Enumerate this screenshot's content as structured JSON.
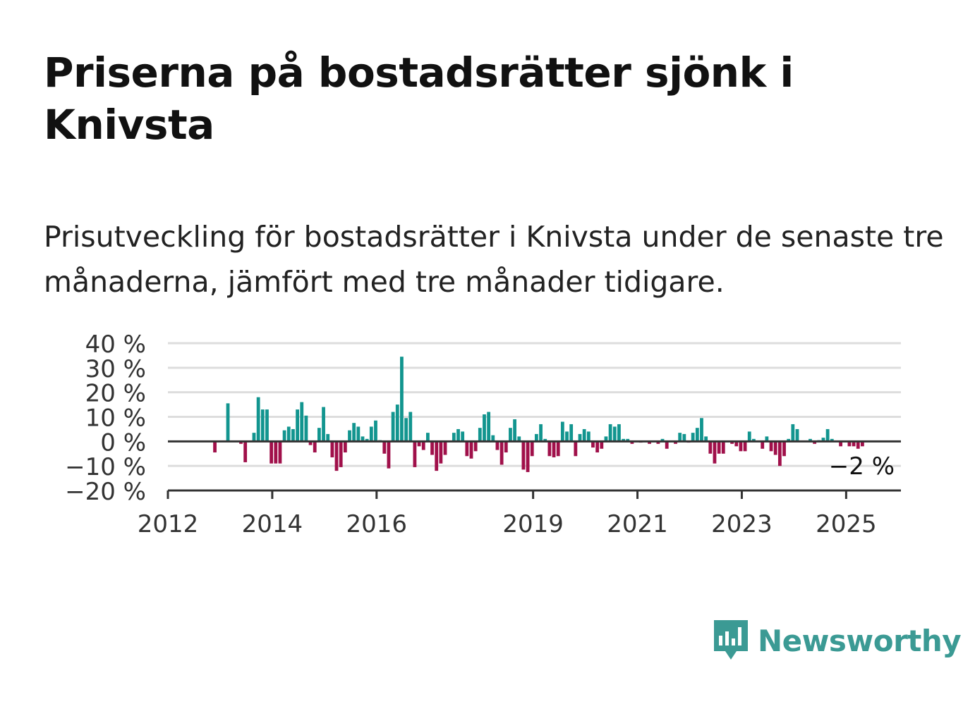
{
  "title": "Priserna på bostadsrätter sjönk i Knivsta",
  "subtitle": "Prisutveckling för bostadsrätter i Knivsta under de senaste tre månaderna, jämfört med tre månader tidigare.",
  "brand": {
    "name": "Newsworthy",
    "icon": "newsworthy-logo-icon",
    "color": "#3b9a94"
  },
  "colors": {
    "positive": "#12958f",
    "negative": "#a0104a",
    "grid": "#dddddd",
    "axis": "#333333"
  },
  "chart_data": {
    "type": "bar",
    "title": "Priserna på bostadsrätter sjönk i Knivsta",
    "xlabel": "",
    "ylabel": "",
    "ylim": [
      -20,
      40
    ],
    "xlim": [
      2012,
      2026.05
    ],
    "y_ticks": [
      40,
      30,
      20,
      10,
      0,
      -10,
      -20
    ],
    "y_tick_labels": [
      "40 %",
      "30 %",
      "20 %",
      "10 %",
      "0 %",
      "−10 %",
      "−20 %"
    ],
    "x_ticks": [
      2012,
      2014,
      2016,
      2019,
      2021,
      2023,
      2025
    ],
    "x_tick_labels": [
      "2012",
      "2014",
      "2016",
      "2019",
      "2021",
      "2023",
      "2025"
    ],
    "grid": true,
    "last_value_label": "−2 %",
    "unit": "%",
    "series": [
      {
        "start": 2012.9,
        "step": 0.0833,
        "values": [
          -4.5,
          0,
          0,
          15.5,
          0,
          0,
          -1,
          -8.5,
          0,
          3.5,
          18,
          13,
          13,
          -9,
          -9,
          -9,
          4.5,
          6,
          5,
          13,
          16,
          10.5,
          -1.5,
          -4.5,
          5.5,
          14,
          3,
          -6.5,
          -12,
          -10.5,
          -4.5,
          4.5,
          7.5,
          6,
          2,
          1,
          6,
          8.5,
          0.5,
          -5,
          -11,
          12,
          15,
          34.5,
          9.5,
          12,
          -10.5,
          -2,
          -3.5,
          3.5,
          -5.5,
          -12,
          -9,
          -5.5,
          0,
          3.5,
          5,
          4,
          -6,
          -7,
          -4,
          5.5,
          11,
          12,
          2.5,
          -3.5,
          -9.5,
          -4.5,
          5.5,
          9,
          2,
          -11.5,
          -12.5,
          -6,
          3,
          7,
          1,
          -6,
          -6.5,
          -6,
          8,
          4,
          7,
          -6,
          3,
          5,
          4,
          -2.5,
          -4.5,
          -3,
          2,
          7,
          6,
          7,
          1,
          1,
          -1,
          0,
          -0.5,
          0,
          -1,
          0,
          -1,
          1,
          -3,
          0,
          -1,
          3.5,
          3,
          -0.5,
          3.5,
          5.5,
          9.5,
          2,
          -5,
          -9,
          -5,
          -5,
          0,
          -1,
          -2,
          -4,
          -4,
          4,
          1,
          0,
          -3,
          2,
          -4,
          -5.5,
          -10,
          -6,
          1,
          7,
          5,
          0,
          0,
          1,
          -1,
          0.5,
          1.5,
          5,
          1,
          0,
          -2,
          0,
          -2,
          -2,
          -3,
          -2
        ]
      }
    ]
  }
}
